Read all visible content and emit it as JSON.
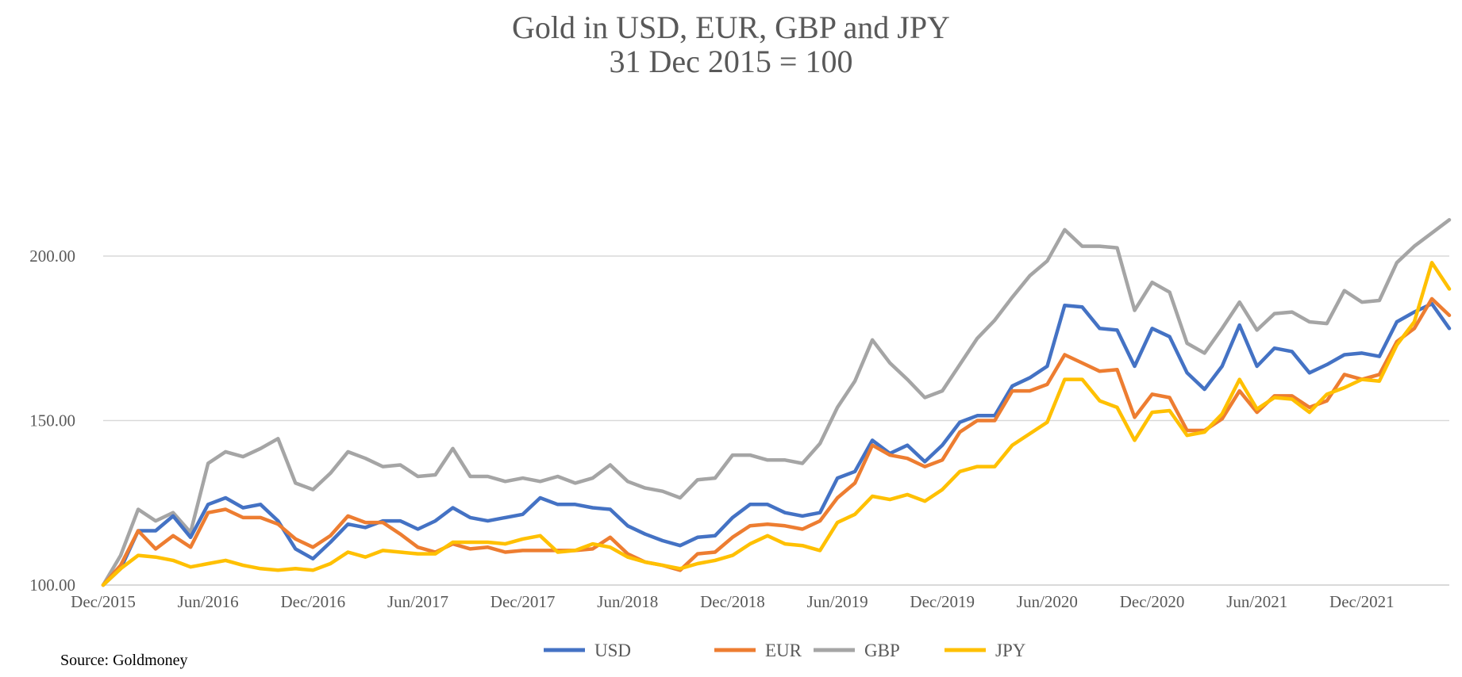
{
  "chart_data": {
    "type": "line",
    "title": "Gold in USD, EUR, GBP and JPY",
    "subtitle": "31 Dec 2015 = 100",
    "source": "Source: Goldmoney",
    "ylim": [
      100,
      220
    ],
    "yticks": [
      100,
      150,
      200
    ],
    "ytick_labels": [
      "100.00",
      "150.00",
      "200.00"
    ],
    "grid": true,
    "legend_position": "bottom",
    "x_start": "2015-12",
    "x_end": "2022-05",
    "xtick_labels": [
      "Dec/2015",
      "Jun/2016",
      "Dec/2016",
      "Jun/2017",
      "Dec/2017",
      "Jun/2018",
      "Dec/2018",
      "Jun/2019",
      "Dec/2019",
      "Jun/2020",
      "Dec/2020",
      "Jun/2021",
      "Dec/2021"
    ],
    "series": [
      {
        "name": "USD",
        "color": "#4472c4",
        "values": [
          100,
          105,
          116.5,
          116.5,
          121,
          114.5,
          124.5,
          126.5,
          123.5,
          124.5,
          119.5,
          111,
          108,
          113,
          118.5,
          117.5,
          119.5,
          119.5,
          117,
          119.5,
          123.5,
          120.5,
          119.5,
          120.5,
          121.5,
          126.5,
          124.5,
          124.5,
          123.5,
          123,
          118,
          115.5,
          113.5,
          112,
          114.5,
          115,
          120.5,
          124.5,
          124.5,
          122,
          121,
          122,
          132.5,
          134.5,
          144,
          140,
          142.5,
          137.5,
          142.5,
          149.5,
          151.5,
          151.5,
          160.5,
          163,
          166.5,
          185,
          184.5,
          178,
          177.5,
          166.5,
          178,
          175.5,
          164.5,
          159.5,
          166.5,
          179,
          166.5,
          172,
          171,
          164.5,
          167,
          170,
          170.5,
          169.5,
          180,
          183,
          185.5,
          178
        ]
      },
      {
        "name": "EUR",
        "color": "#ed7d31",
        "values": [
          100,
          106,
          116.5,
          111,
          115,
          111.5,
          122,
          123,
          120.5,
          120.5,
          118.5,
          114,
          111.5,
          115,
          121,
          119,
          119,
          115.5,
          111.5,
          110,
          112.5,
          111,
          111.5,
          110,
          110.5,
          110.5,
          110.5,
          110.5,
          111,
          114.5,
          109.5,
          107,
          106,
          104.5,
          109.5,
          110,
          114.5,
          118,
          118.5,
          118,
          117,
          119.5,
          126.5,
          131,
          142.5,
          139.5,
          138.5,
          136,
          138,
          146.5,
          150,
          150,
          159,
          159,
          161,
          170,
          167.5,
          165,
          165.5,
          151,
          158,
          157,
          147,
          147,
          150.5,
          159,
          152.5,
          157.5,
          157.5,
          154,
          156,
          164,
          162.5,
          164,
          174,
          178,
          187,
          182
        ]
      },
      {
        "name": "GBP",
        "color": "#a5a5a5",
        "values": [
          100,
          109,
          123,
          119.5,
          122,
          116,
          137,
          140.5,
          139,
          141.5,
          144.5,
          131,
          129,
          134,
          140.5,
          138.5,
          136,
          136.5,
          133,
          133.5,
          141.5,
          133,
          133,
          131.5,
          132.5,
          131.5,
          133,
          131,
          132.5,
          136.5,
          131.5,
          129.5,
          128.5,
          126.5,
          132,
          132.5,
          139.5,
          139.5,
          138,
          138,
          137,
          143,
          154,
          162,
          174.5,
          167.5,
          162.5,
          157,
          159,
          167,
          175,
          180.5,
          187.5,
          194,
          198.5,
          208,
          203,
          203,
          202.5,
          183.5,
          192,
          189,
          173.5,
          170.5,
          178,
          186,
          177.5,
          182.5,
          183,
          180,
          179.5,
          189.5,
          186,
          186.5,
          198,
          203,
          207,
          211
        ]
      },
      {
        "name": "JPY",
        "color": "#ffc000",
        "values": [
          100,
          105,
          109,
          108.5,
          107.5,
          105.5,
          106.5,
          107.5,
          106,
          105,
          104.5,
          105,
          104.5,
          106.5,
          110,
          108.5,
          110.5,
          110,
          109.5,
          109.5,
          113,
          113,
          113,
          112.5,
          114,
          115,
          110,
          110.5,
          112.5,
          111.5,
          108.5,
          107,
          106,
          105,
          106.5,
          107.5,
          109,
          112.5,
          115,
          112.5,
          112,
          110.5,
          119,
          121.5,
          127,
          126,
          127.5,
          125.5,
          129,
          134.5,
          136,
          136,
          142.5,
          146,
          149.5,
          162.5,
          162.5,
          156,
          154,
          144,
          152.5,
          153,
          145.5,
          146.5,
          152,
          162.5,
          153.5,
          157,
          156.5,
          152.5,
          158,
          160,
          162.5,
          162,
          173,
          180,
          198,
          190
        ]
      }
    ]
  }
}
